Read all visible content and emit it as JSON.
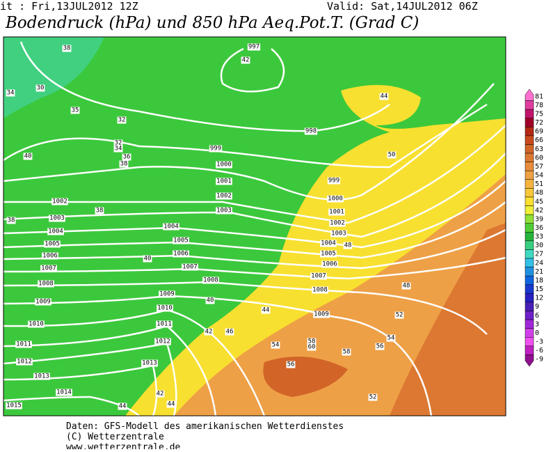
{
  "header": {
    "run": "it : Fri,13JUL2012 12Z",
    "valid": "Valid: Sat,14JUL2012 06Z",
    "title": "Bodendruck (hPa) und 850 hPa Aeq.Pot.T. (Grad C)"
  },
  "footer": {
    "line1": "Daten: GFS-Modell des amerikanischen Wetterdienstes",
    "line2": "(C) Wetterzentrale",
    "line3": "www.wetterzentrale.de"
  },
  "isobar_labels": [
    "997",
    "998",
    "999",
    "1000",
    "1001",
    "1002",
    "1003",
    "999",
    "1000",
    "1001",
    "1002",
    "1003",
    "1004",
    "1005",
    "1006",
    "1007",
    "1008",
    "1009",
    "1002",
    "1003",
    "1004",
    "1005",
    "1006",
    "1007",
    "1008",
    "1009",
    "1010",
    "1011",
    "1012",
    "1013",
    "1014",
    "1015",
    "1004",
    "1005",
    "1006",
    "1007",
    "1008",
    "1009",
    "1010",
    "1011",
    "1012",
    "1013"
  ],
  "temp_labels": [
    "38",
    "34",
    "30",
    "35",
    "32",
    "32",
    "34",
    "36",
    "38",
    "40",
    "42",
    "38",
    "38",
    "40",
    "40",
    "44",
    "42",
    "46",
    "44",
    "48",
    "50",
    "48",
    "52",
    "54",
    "56",
    "58",
    "60",
    "58",
    "56",
    "54",
    "52",
    "44",
    "42",
    "44"
  ],
  "colorbar": {
    "values": [
      81,
      78,
      75,
      72,
      69,
      66,
      63,
      60,
      57,
      54,
      51,
      48,
      45,
      42,
      39,
      36,
      33,
      30,
      27,
      24,
      21,
      18,
      15,
      12,
      9,
      6,
      3,
      0,
      -3,
      -6,
      -9
    ],
    "colors": [
      "#ff70d0",
      "#e03ca0",
      "#c0146c",
      "#a00028",
      "#b42814",
      "#c84a1e",
      "#d26428",
      "#dc7832",
      "#e68c3c",
      "#eea046",
      "#f4b440",
      "#f8c838",
      "#fce030",
      "#f0f038",
      "#90e038",
      "#50cc38",
      "#28b43c",
      "#38d080",
      "#40d8c0",
      "#30c0e8",
      "#2090e0",
      "#1064e0",
      "#1838d0",
      "#2820c0",
      "#4820b8",
      "#7020c8",
      "#a028d8",
      "#d040e8",
      "#f050f0",
      "#c020c0",
      "#901090"
    ]
  }
}
